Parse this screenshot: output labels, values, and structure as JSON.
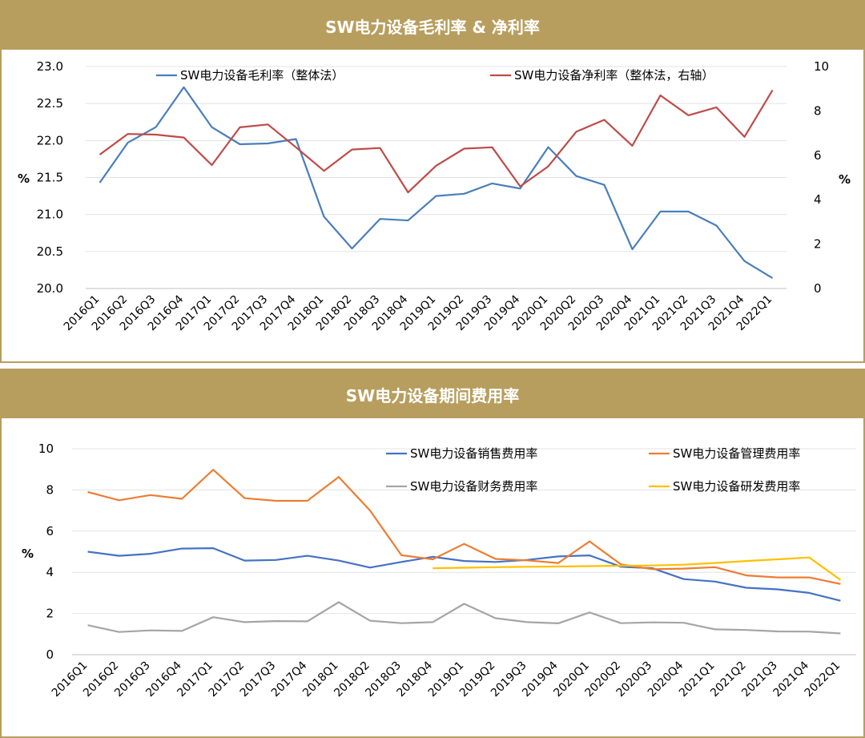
{
  "chart_data": [
    {
      "type": "line",
      "title": "SW电力设备毛利率 & 净利率",
      "ylabel_left": "%",
      "ylabel_right": "%",
      "ylim_left": [
        20.0,
        23.0
      ],
      "ylim_right": [
        0,
        10
      ],
      "yticks_left": [
        "20.0",
        "20.5",
        "21.0",
        "21.5",
        "22.0",
        "22.5",
        "23.0"
      ],
      "yticks_right": [
        "0",
        "2",
        "4",
        "6",
        "8",
        "10"
      ],
      "legend_position": "top",
      "grid": true,
      "categories": [
        "2016Q1",
        "2016Q2",
        "2016Q3",
        "2016Q4",
        "2017Q1",
        "2017Q2",
        "2017Q3",
        "2017Q4",
        "2018Q1",
        "2018Q2",
        "2018Q3",
        "2018Q4",
        "2019Q1",
        "2019Q2",
        "2019Q3",
        "2019Q4",
        "2020Q1",
        "2020Q2",
        "2020Q3",
        "2020Q4",
        "2021Q1",
        "2021Q2",
        "2021Q3",
        "2021Q4",
        "2022Q1"
      ],
      "series": [
        {
          "name": "SW电力设备毛利率（整体法）",
          "axis": "left",
          "color": "#4a7ebb",
          "values": [
            21.43,
            21.97,
            22.18,
            22.72,
            22.18,
            21.95,
            21.96,
            22.02,
            20.97,
            20.54,
            20.94,
            20.92,
            21.25,
            21.28,
            21.42,
            21.35,
            21.91,
            21.52,
            21.4,
            20.53,
            21.04,
            21.04,
            20.85,
            20.37,
            20.14
          ]
        },
        {
          "name": "SW电力设备净利率（整体法，右轴）",
          "axis": "right",
          "color": "#be4b48",
          "values": [
            6.03,
            6.96,
            6.93,
            6.8,
            5.56,
            7.26,
            7.39,
            6.36,
            5.3,
            6.26,
            6.33,
            4.33,
            5.53,
            6.3,
            6.36,
            4.6,
            5.5,
            7.06,
            7.6,
            6.43,
            8.7,
            7.8,
            8.16,
            6.83,
            8.93
          ]
        }
      ]
    },
    {
      "type": "line",
      "title": "SW电力设备期间费用率",
      "ylabel": "%",
      "ylim": [
        0,
        10
      ],
      "yticks": [
        "0",
        "2",
        "4",
        "6",
        "8",
        "10"
      ],
      "legend_position": "top-right",
      "grid": true,
      "categories": [
        "2016Q1",
        "2016Q2",
        "2016Q3",
        "2016Q4",
        "2017Q1",
        "2017Q2",
        "2017Q3",
        "2017Q4",
        "2018Q1",
        "2018Q2",
        "2018Q3",
        "2018Q4",
        "2019Q1",
        "2019Q2",
        "2019Q3",
        "2019Q4",
        "2020Q1",
        "2020Q2",
        "2020Q3",
        "2020Q4",
        "2021Q1",
        "2021Q2",
        "2021Q3",
        "2021Q4",
        "2022Q1"
      ],
      "series": [
        {
          "name": "SW电力设备销售费用率",
          "color": "#4472c4",
          "values": [
            5.0,
            4.8,
            4.9,
            5.15,
            5.17,
            4.57,
            4.6,
            4.8,
            4.57,
            4.23,
            4.5,
            4.75,
            4.55,
            4.5,
            4.6,
            4.77,
            4.82,
            4.27,
            4.2,
            3.67,
            3.55,
            3.25,
            3.17,
            3.0,
            2.62
          ]
        },
        {
          "name": "SW电力设备管理费用率",
          "color": "#ed7d31",
          "values": [
            7.9,
            7.5,
            7.75,
            7.57,
            8.98,
            7.6,
            7.47,
            7.47,
            8.63,
            7.0,
            4.83,
            4.63,
            5.38,
            4.65,
            4.58,
            4.45,
            5.5,
            4.38,
            4.15,
            4.18,
            4.25,
            3.85,
            3.75,
            3.75,
            3.43
          ]
        },
        {
          "name": "SW电力设备财务费用率",
          "color": "#a5a5a5",
          "values": [
            1.43,
            1.1,
            1.18,
            1.15,
            1.82,
            1.58,
            1.63,
            1.62,
            2.55,
            1.65,
            1.53,
            1.58,
            2.47,
            1.77,
            1.58,
            1.52,
            2.05,
            1.53,
            1.57,
            1.55,
            1.23,
            1.2,
            1.13,
            1.12,
            1.03
          ]
        },
        {
          "name": "SW电力设备研发费用率",
          "color": "#ffc000",
          "values": [
            null,
            null,
            null,
            null,
            null,
            null,
            null,
            null,
            null,
            null,
            null,
            4.2,
            4.22,
            4.25,
            4.27,
            4.28,
            4.3,
            4.32,
            4.33,
            4.37,
            4.45,
            4.55,
            4.63,
            4.72,
            3.63
          ]
        }
      ]
    }
  ]
}
